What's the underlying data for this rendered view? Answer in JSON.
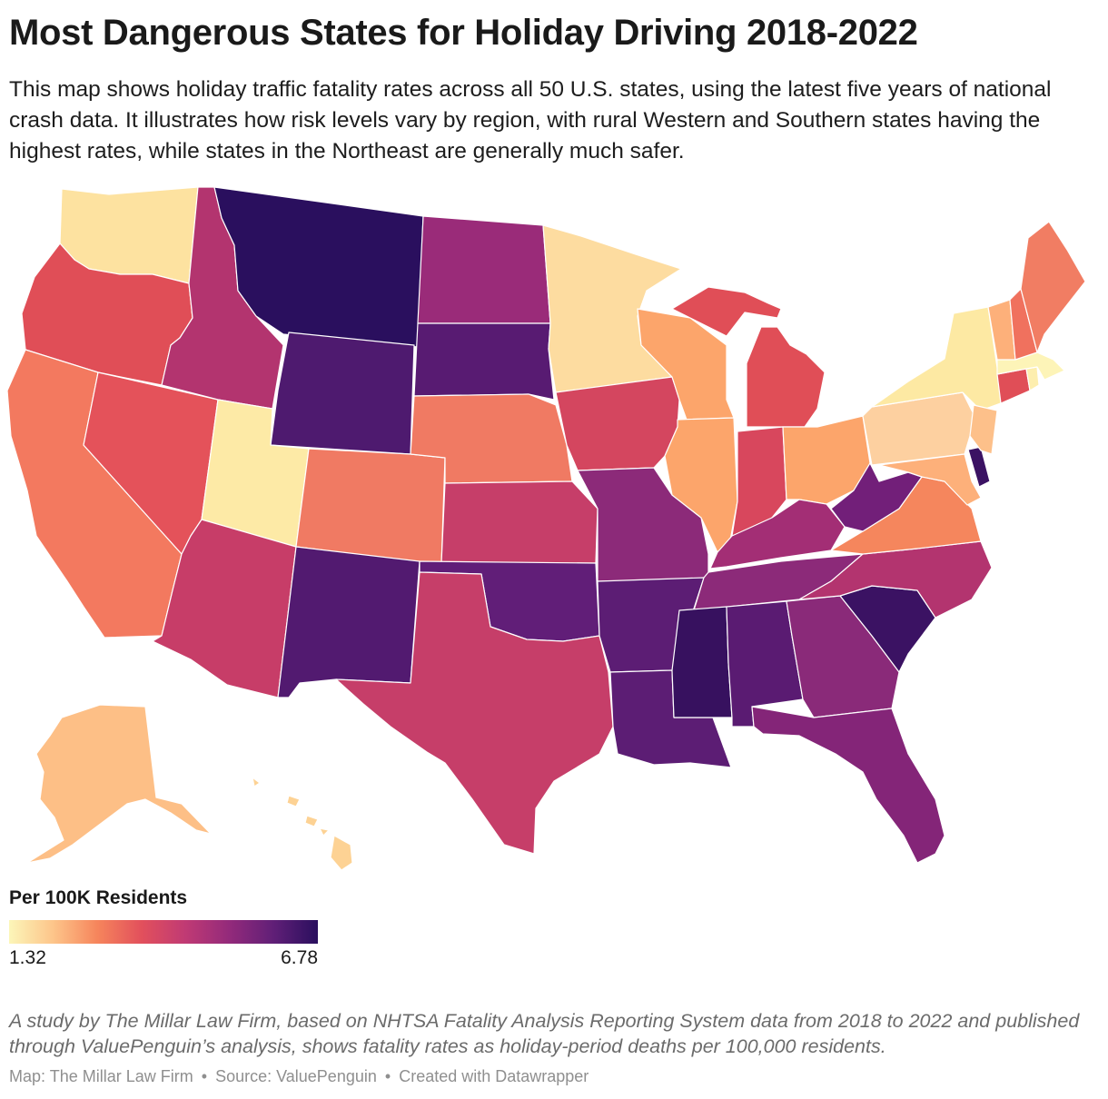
{
  "title": "Most Dangerous States for Holiday Driving 2018-2022",
  "subtitle": "This map shows holiday traffic fatality rates across all 50 U.S. states, using the latest five years of national crash data. It illustrates how risk levels vary by region, with rural Western and Southern states having the highest rates, while states in the Northeast are generally much safer.",
  "legend": {
    "title": "Per 100K Residents",
    "min_label": "1.32",
    "max_label": "6.78",
    "min": 1.32,
    "max": 6.78,
    "colors": [
      "#fcf6b9",
      "#fdc58a",
      "#f6855c",
      "#e2505c",
      "#c03a74",
      "#932a7b",
      "#601f77",
      "#2a0f5e"
    ]
  },
  "states": [
    {
      "abbr": "WA",
      "color": "#fde2a0"
    },
    {
      "abbr": "OR",
      "color": "#e04e57"
    },
    {
      "abbr": "CA",
      "color": "#f3795f"
    },
    {
      "abbr": "NV",
      "color": "#e4525a"
    },
    {
      "abbr": "ID",
      "color": "#b3346f"
    },
    {
      "abbr": "MT",
      "color": "#2a0f5e"
    },
    {
      "abbr": "WY",
      "color": "#4e1a6f"
    },
    {
      "abbr": "UT",
      "color": "#fdeaa6"
    },
    {
      "abbr": "AZ",
      "color": "#c73d68"
    },
    {
      "abbr": "CO",
      "color": "#f07a63"
    },
    {
      "abbr": "NM",
      "color": "#521a70"
    },
    {
      "abbr": "ND",
      "color": "#9a2b79"
    },
    {
      "abbr": "SD",
      "color": "#581b72"
    },
    {
      "abbr": "NE",
      "color": "#f07a63"
    },
    {
      "abbr": "KS",
      "color": "#c63e69"
    },
    {
      "abbr": "OK",
      "color": "#611e78"
    },
    {
      "abbr": "TX",
      "color": "#c63e69"
    },
    {
      "abbr": "MN",
      "color": "#fddca0"
    },
    {
      "abbr": "IA",
      "color": "#d4465f"
    },
    {
      "abbr": "MO",
      "color": "#8c2a79"
    },
    {
      "abbr": "AR",
      "color": "#5c1d74"
    },
    {
      "abbr": "LA",
      "color": "#5c1d74"
    },
    {
      "abbr": "WI",
      "color": "#fca56b"
    },
    {
      "abbr": "IL",
      "color": "#fca56b"
    },
    {
      "abbr": "MI",
      "color": "#e04e57"
    },
    {
      "abbr": "IN",
      "color": "#d8475d"
    },
    {
      "abbr": "OH",
      "color": "#fca56b"
    },
    {
      "abbr": "KY",
      "color": "#a32e75"
    },
    {
      "abbr": "TN",
      "color": "#8c2a79"
    },
    {
      "abbr": "MS",
      "color": "#37115f"
    },
    {
      "abbr": "AL",
      "color": "#5a1b72"
    },
    {
      "abbr": "GA",
      "color": "#8a2a79"
    },
    {
      "abbr": "FL",
      "color": "#842578"
    },
    {
      "abbr": "SC",
      "color": "#3b1263"
    },
    {
      "abbr": "NC",
      "color": "#b3346f"
    },
    {
      "abbr": "VA",
      "color": "#f5865d"
    },
    {
      "abbr": "WV",
      "color": "#721f79"
    },
    {
      "abbr": "PA",
      "color": "#fdd0a0"
    },
    {
      "abbr": "NY",
      "color": "#fde9a3"
    },
    {
      "abbr": "MD",
      "color": "#fdb07a"
    },
    {
      "abbr": "DE",
      "color": "#3b1263"
    },
    {
      "abbr": "NJ",
      "color": "#fdc08a"
    },
    {
      "abbr": "CT",
      "color": "#e04e57"
    },
    {
      "abbr": "RI",
      "color": "#fdeeae"
    },
    {
      "abbr": "MA",
      "color": "#fdf4b8"
    },
    {
      "abbr": "VT",
      "color": "#fdb07a"
    },
    {
      "abbr": "NH",
      "color": "#f0715e"
    },
    {
      "abbr": "ME",
      "color": "#f17d63"
    },
    {
      "abbr": "AK",
      "color": "#fdbf86"
    },
    {
      "abbr": "HI",
      "color": "#fdd294"
    }
  ],
  "notes": "A study by The Millar Law Firm, based on NHTSA Fatality Analysis Reporting System data from 2018 to 2022 and published through ValuePenguin’s analysis, shows fatality rates as holiday-period deaths per 100,000 residents.",
  "footer": {
    "map_credit": "Map: The Millar Law Firm",
    "source": "Source: ValuePenguin",
    "tool": "Created with Datawrapper",
    "separator": "•"
  }
}
